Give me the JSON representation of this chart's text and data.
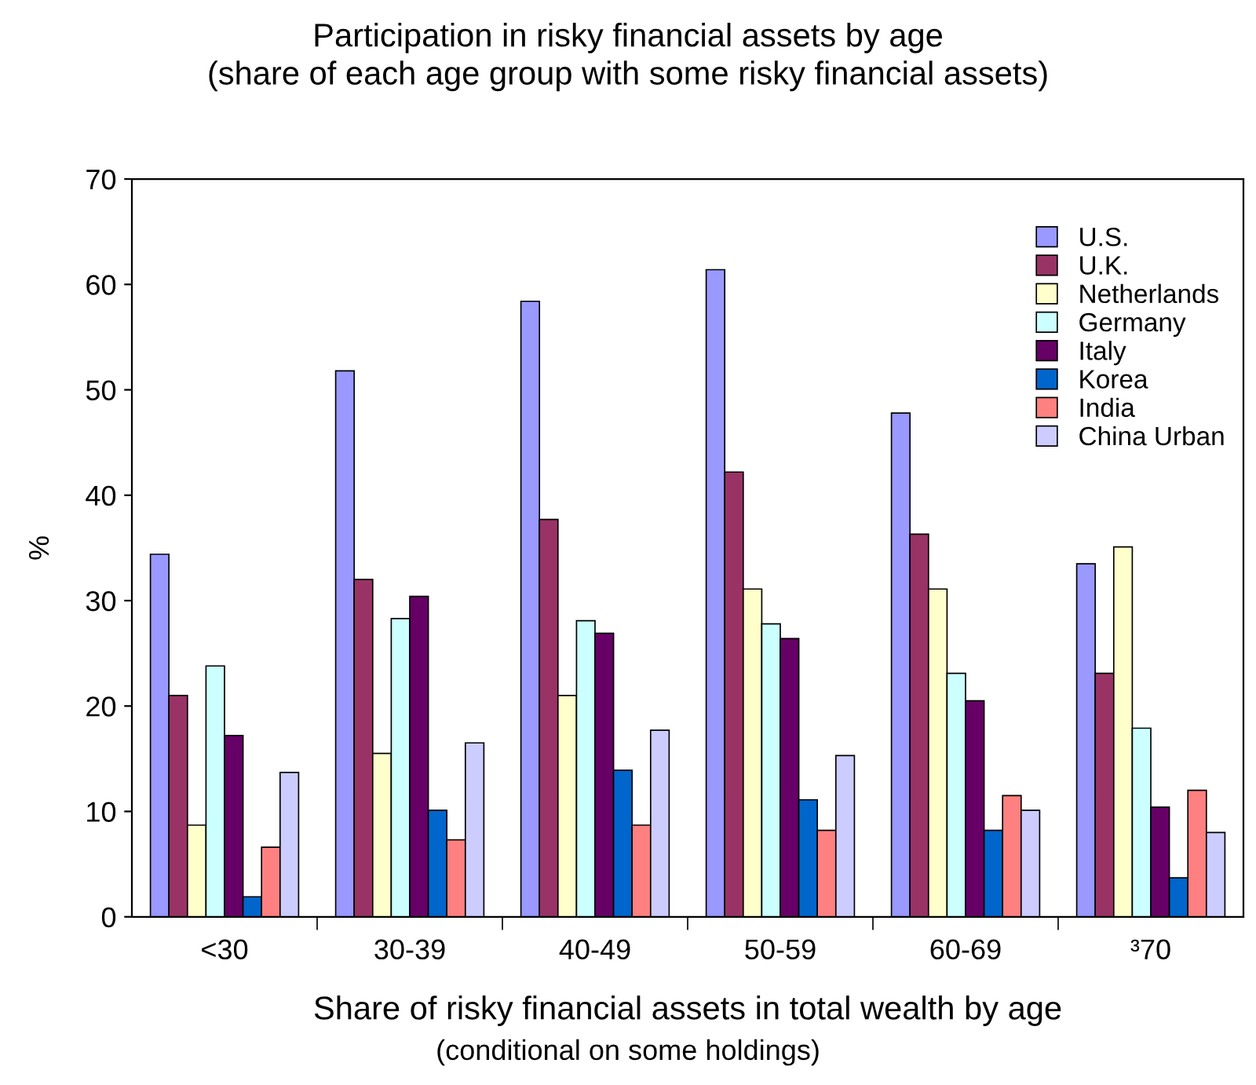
{
  "chart_data": {
    "type": "bar",
    "title": "Participation in risky financial assets by age",
    "subtitle": "(share of each age group with some risky financial assets)",
    "xlabel": "Share of risky financial assets in total wealth by age",
    "ylabel": "%",
    "annotations": [
      "(conditional on some holdings)"
    ],
    "categories": [
      "<30",
      "30-39",
      "40-49",
      "50-59",
      "60-69",
      "³70"
    ],
    "ylim": [
      0,
      70
    ],
    "yticks": [
      0,
      10,
      20,
      30,
      40,
      50,
      60,
      70
    ],
    "grid": false,
    "legend": "top right",
    "series": [
      {
        "name": "U.S.",
        "color": "#9999ff",
        "values": [
          34.4,
          51.8,
          58.4,
          61.4,
          47.8,
          33.5
        ]
      },
      {
        "name": "U.K.",
        "color": "#993366",
        "values": [
          21,
          32,
          37.7,
          42.2,
          36.3,
          23.1
        ]
      },
      {
        "name": "Netherlands",
        "color": "#ffffcc",
        "values": [
          8.7,
          15.5,
          21,
          31.1,
          31.1,
          35.1
        ]
      },
      {
        "name": "Germany",
        "color": "#ccffff",
        "values": [
          23.8,
          28.3,
          28.1,
          27.8,
          23.1,
          17.9
        ]
      },
      {
        "name": "Italy",
        "color": "#660066",
        "values": [
          17.2,
          30.4,
          26.9,
          26.4,
          20.5,
          10.4
        ]
      },
      {
        "name": "Korea",
        "color": "#0066cc",
        "values": [
          1.9,
          10.1,
          13.9,
          11.1,
          8.2,
          3.7
        ]
      },
      {
        "name": "India",
        "color": "#ff8080",
        "values": [
          6.6,
          7.3,
          8.7,
          8.2,
          11.5,
          12
        ]
      },
      {
        "name": "China Urban",
        "color": "#ccccff",
        "values": [
          13.7,
          16.5,
          17.7,
          15.3,
          10.1,
          8
        ]
      }
    ]
  }
}
